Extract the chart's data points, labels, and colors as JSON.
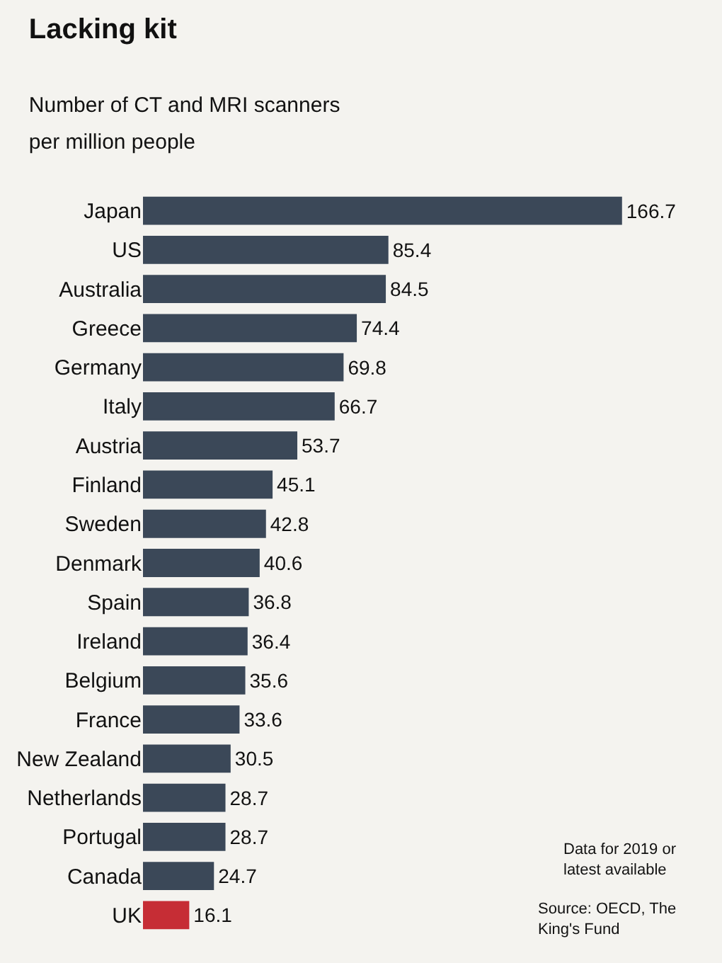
{
  "chart_data": {
    "type": "bar",
    "orientation": "horizontal",
    "title": "Lacking kit",
    "subtitle": "Number of CT and MRI scanners per million people",
    "categories": [
      "Japan",
      "US",
      "Australia",
      "Greece",
      "Germany",
      "Italy",
      "Austria",
      "Finland",
      "Sweden",
      "Denmark",
      "Spain",
      "Ireland",
      "Belgium",
      "France",
      "New Zealand",
      "Netherlands",
      "Portugal",
      "Canada",
      "UK"
    ],
    "values": [
      166.7,
      85.4,
      84.5,
      74.4,
      69.8,
      66.7,
      53.7,
      45.1,
      42.8,
      40.6,
      36.8,
      36.4,
      35.6,
      33.6,
      30.5,
      28.7,
      28.7,
      24.7,
      16.1
    ],
    "colors": [
      "#3b4858",
      "#3b4858",
      "#3b4858",
      "#3b4858",
      "#3b4858",
      "#3b4858",
      "#3b4858",
      "#3b4858",
      "#3b4858",
      "#3b4858",
      "#3b4858",
      "#3b4858",
      "#3b4858",
      "#3b4858",
      "#3b4858",
      "#3b4858",
      "#3b4858",
      "#3b4858",
      "#c62d35"
    ],
    "data_labels": true,
    "grid": false,
    "annotations": [
      "Data for 2019 or latest available",
      "Source: OECD, The King's Fund"
    ]
  }
}
